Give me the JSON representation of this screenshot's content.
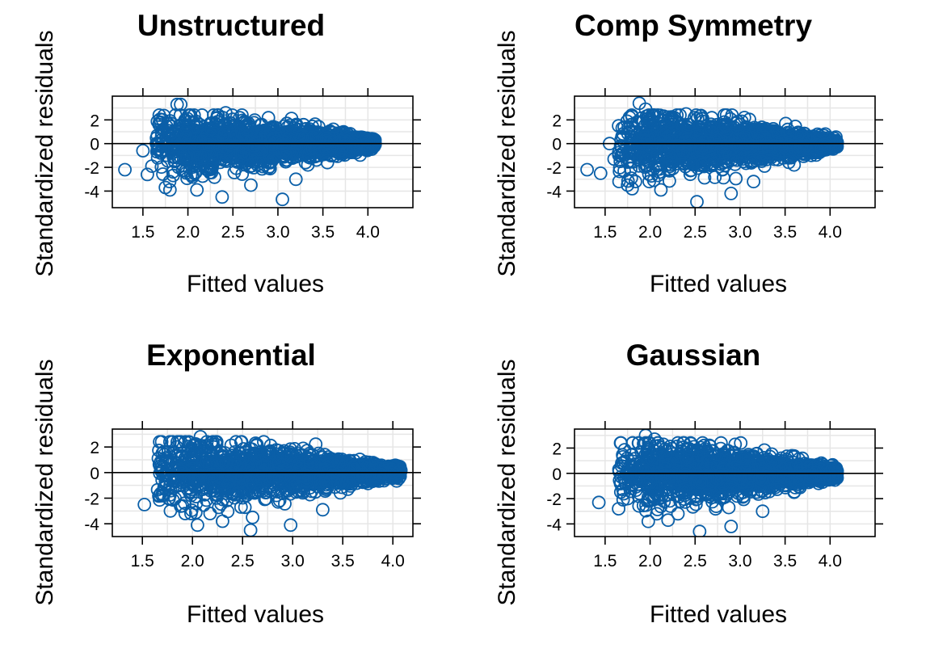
{
  "figure": {
    "point_color": "#0A5FA8",
    "grid_color": "#E6E6E6",
    "refline_color": "#000000"
  },
  "chart_data": [
    {
      "type": "scatter",
      "title": "Unstructured",
      "xlabel": "Fitted values",
      "ylabel": "Standardized residuals",
      "xlim": [
        1.16,
        4.5
      ],
      "ylim": [
        -5.4,
        4.0
      ],
      "xticks": [
        1.5,
        2.0,
        2.5,
        3.0,
        3.5,
        4.0
      ],
      "xtick_labels": [
        "1.5",
        "2.0",
        "2.5",
        "3.0",
        "3.5",
        "4.0"
      ],
      "yticks": [
        -4,
        -2,
        0,
        2
      ],
      "ytick_labels": [
        "-4",
        "-2",
        "0",
        "2"
      ],
      "reference_line_y": 0,
      "grid": true,
      "series": [
        {
          "points": [
            [
              1.3,
              -2.2
            ],
            [
              1.5,
              -0.6
            ],
            [
              1.55,
              -2.6
            ],
            [
              1.6,
              -1.9
            ],
            [
              1.68,
              1.6
            ],
            [
              1.75,
              -3.7
            ],
            [
              1.8,
              -3.9
            ],
            [
              1.88,
              3.3
            ],
            [
              1.92,
              3.3
            ],
            [
              1.78,
              1.7
            ],
            [
              2.1,
              -3.9
            ],
            [
              2.38,
              -4.5
            ],
            [
              2.42,
              2.6
            ],
            [
              2.7,
              -3.5
            ],
            [
              3.05,
              -4.7
            ],
            [
              3.2,
              -3.0
            ],
            [
              3.55,
              -1.6
            ],
            [
              2.6,
              2.4
            ],
            [
              1.65,
              0.0
            ],
            [
              1.7,
              -0.8
            ]
          ]
        }
      ]
    },
    {
      "type": "scatter",
      "title": "Comp Symmetry",
      "xlabel": "Fitted values",
      "ylabel": "Standardized residuals",
      "xlim": [
        1.16,
        4.5
      ],
      "ylim": [
        -5.4,
        4.0
      ],
      "xticks": [
        1.5,
        2.0,
        2.5,
        3.0,
        3.5,
        4.0
      ],
      "xtick_labels": [
        "1.5",
        "2.0",
        "2.5",
        "3.0",
        "3.5",
        "4.0"
      ],
      "yticks": [
        -4,
        -2,
        0,
        2
      ],
      "ytick_labels": [
        "-4",
        "-2",
        "0",
        "2"
      ],
      "reference_line_y": 0,
      "grid": true,
      "series": [
        {
          "points": [
            [
              1.3,
              -2.2
            ],
            [
              1.45,
              -2.5
            ],
            [
              1.55,
              0.0
            ],
            [
              1.6,
              -1.3
            ],
            [
              1.65,
              1.5
            ],
            [
              1.75,
              -3.5
            ],
            [
              1.88,
              3.4
            ],
            [
              1.95,
              2.9
            ],
            [
              2.12,
              -3.9
            ],
            [
              2.52,
              -4.9
            ],
            [
              2.9,
              -4.2
            ],
            [
              3.15,
              -3.2
            ],
            [
              3.6,
              -1.8
            ],
            [
              1.8,
              -3.8
            ],
            [
              2.4,
              2.5
            ],
            [
              2.85,
              2.4
            ]
          ]
        }
      ]
    },
    {
      "type": "scatter",
      "title": "Exponential",
      "xlabel": "Fitted values",
      "ylabel": "Standardized residuals",
      "xlim": [
        1.2,
        4.2
      ],
      "ylim": [
        -5.0,
        3.4
      ],
      "xticks": [
        1.5,
        2.0,
        2.5,
        3.0,
        3.5,
        4.0
      ],
      "xtick_labels": [
        "1.5",
        "2.0",
        "2.5",
        "3.0",
        "3.5",
        "4.0"
      ],
      "yticks": [
        -4,
        -2,
        0,
        2
      ],
      "ytick_labels": [
        "-4",
        "-2",
        "0",
        "2"
      ],
      "reference_line_y": 0,
      "grid": true,
      "series": [
        {
          "points": [
            [
              1.52,
              -2.5
            ],
            [
              1.75,
              1.2
            ],
            [
              1.78,
              -3.0
            ],
            [
              1.85,
              1.3
            ],
            [
              1.9,
              -2.6
            ],
            [
              2.08,
              2.8
            ],
            [
              2.05,
              -4.1
            ],
            [
              2.3,
              -3.8
            ],
            [
              2.58,
              -4.5
            ],
            [
              2.98,
              -4.1
            ],
            [
              3.3,
              -2.9
            ],
            [
              3.55,
              -1.3
            ],
            [
              2.6,
              -3.5
            ],
            [
              2.2,
              2.2
            ]
          ]
        }
      ]
    },
    {
      "type": "scatter",
      "title": "Gaussian",
      "xlabel": "Fitted values",
      "ylabel": "Standardized residuals",
      "xlim": [
        1.16,
        4.5
      ],
      "ylim": [
        -5.0,
        3.5
      ],
      "xticks": [
        1.5,
        2.0,
        2.5,
        3.0,
        3.5,
        4.0
      ],
      "xtick_labels": [
        "1.5",
        "2.0",
        "2.5",
        "3.0",
        "3.5",
        "4.0"
      ],
      "yticks": [
        -4,
        -2,
        0,
        2
      ],
      "ytick_labels": [
        "-4",
        "-2",
        "0",
        "2"
      ],
      "reference_line_y": 0,
      "grid": true,
      "series": [
        {
          "points": [
            [
              1.43,
              -2.3
            ],
            [
              1.65,
              -2.8
            ],
            [
              1.7,
              1.3
            ],
            [
              1.75,
              -2.0
            ],
            [
              1.95,
              3.0
            ],
            [
              1.98,
              -3.8
            ],
            [
              2.05,
              2.7
            ],
            [
              2.2,
              -3.7
            ],
            [
              2.55,
              -4.6
            ],
            [
              2.9,
              -4.2
            ],
            [
              3.25,
              -3.0
            ],
            [
              3.6,
              -1.5
            ],
            [
              1.8,
              1.5
            ],
            [
              2.6,
              2.2
            ]
          ]
        }
      ]
    }
  ]
}
